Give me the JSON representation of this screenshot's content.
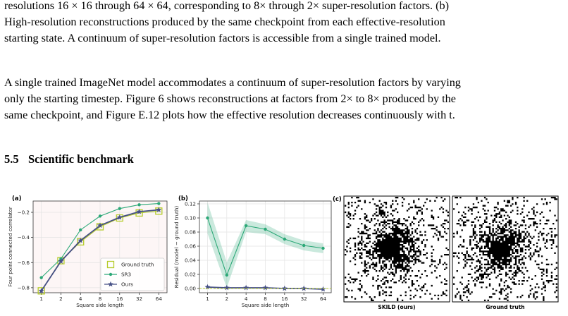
{
  "text": {
    "caption_lines": [
      "resolutions 16 × 16 through 64 × 64, corresponding to 8× through 2× super-resolution factors. (b)",
      "High-resolution reconstructions produced by the same checkpoint from each effective-resolution",
      "starting state. A continuum of super-resolution factors is accessible from a single trained model."
    ],
    "body_lines": [
      "A single trained ImageNet model accommodates a continuum of super-resolution factors by varying",
      "only the starting timestep. Figure 6 shows reconstructions at factors from 2× to 8× produced by the",
      "same checkpoint, and Figure E.12 plots how the effective resolution decreases continuously with t."
    ],
    "section_number": "5.5",
    "section_title": "Scientific benchmark"
  },
  "chart_data": [
    {
      "type": "line",
      "panel_label": "(a)",
      "xlabel": "Square side length",
      "ylabel": "Four point connected correlator",
      "x": [
        1,
        2,
        4,
        8,
        16,
        32,
        64
      ],
      "x_scale": "log2",
      "ylim": [
        -0.84,
        -0.11
      ],
      "yticks": [
        -0.8,
        -0.6,
        -0.4,
        -0.2
      ],
      "ytick_labels": [
        "−0.8",
        "−0.6",
        "−0.4",
        "−0.2"
      ],
      "grid": true,
      "legend_position": "lower-right",
      "series": [
        {
          "name": "Ground truth",
          "color": "#b5cc2a",
          "marker": "square-open",
          "values": [
            -0.825,
            -0.585,
            -0.435,
            -0.315,
            -0.245,
            -0.205,
            -0.19
          ]
        },
        {
          "name": "SR3",
          "color": "#2ba877",
          "marker": "circle",
          "values": [
            -0.72,
            -0.57,
            -0.34,
            -0.23,
            -0.17,
            -0.14,
            -0.13
          ]
        },
        {
          "name": "Ours",
          "color": "#454f85",
          "marker": "star",
          "values": [
            -0.825,
            -0.59,
            -0.425,
            -0.305,
            -0.24,
            -0.195,
            -0.18
          ]
        }
      ]
    },
    {
      "type": "line",
      "panel_label": "(b)",
      "xlabel": "Square side length",
      "ylabel": "Residual (model − ground truth)",
      "x": [
        1,
        2,
        4,
        8,
        16,
        32,
        64
      ],
      "x_scale": "log2",
      "ylim": [
        -0.006,
        0.124
      ],
      "yticks": [
        0.0,
        0.02,
        0.04,
        0.06,
        0.08,
        0.1,
        0.12
      ],
      "ytick_labels": [
        "0.00",
        "0.02",
        "0.04",
        "0.06",
        "0.08",
        "0.10",
        "0.12"
      ],
      "grid": true,
      "series": [
        {
          "name": "SR3",
          "color": "#2ba877",
          "marker": "circle",
          "values": [
            0.1,
            0.019,
            0.089,
            0.084,
            0.07,
            0.061,
            0.057
          ],
          "band_upper": [
            0.122,
            0.037,
            0.097,
            0.091,
            0.077,
            0.068,
            0.064
          ],
          "band_lower": [
            0.078,
            0.001,
            0.08,
            0.077,
            0.063,
            0.054,
            0.05
          ]
        },
        {
          "name": "Ours",
          "color": "#454f85",
          "marker": "star",
          "values": [
            0.002,
            0.001,
            0.001,
            0.001,
            0.0,
            0.0,
            -0.001
          ]
        }
      ]
    }
  ],
  "panel_c": {
    "label": "(c)",
    "captions": [
      "SKILD (ours)",
      "Ground truth"
    ]
  }
}
